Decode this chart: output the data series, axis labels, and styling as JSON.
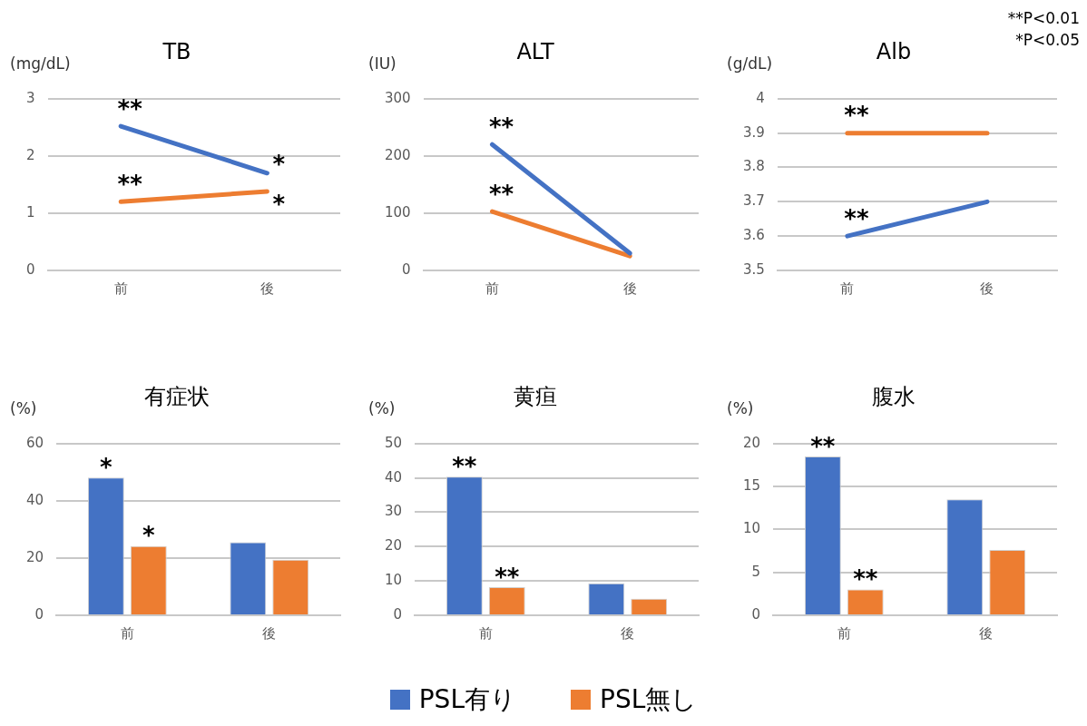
{
  "chart_data": [
    {
      "type": "line",
      "title": "TB",
      "ylabel": "(mg/dL)",
      "categories": [
        "前",
        "後"
      ],
      "ylim": [
        0,
        3
      ],
      "yticks": [
        0,
        1,
        2,
        3
      ],
      "grid": "y",
      "marker": "none",
      "series": [
        {
          "color": "#4472c4",
          "values": [
            2.52,
            1.7
          ]
        },
        {
          "color": "#ed7d31",
          "values": [
            1.2,
            1.38
          ]
        }
      ],
      "annotations": [
        {
          "text": "**",
          "x": "前",
          "y": 2.52
        },
        {
          "text": "*",
          "x": "後",
          "y": 1.7
        },
        {
          "text": "**",
          "x": "前",
          "y": 1.2
        },
        {
          "text": "*",
          "x": "後",
          "y": 1.38
        }
      ]
    },
    {
      "type": "line",
      "title": "ALT",
      "ylabel": "(IU)",
      "categories": [
        "前",
        "後"
      ],
      "ylim": [
        0,
        300
      ],
      "yticks": [
        0,
        100,
        200,
        300
      ],
      "grid": "y",
      "marker": "none",
      "series": [
        {
          "color": "#4472c4",
          "values": [
            220,
            30
          ]
        },
        {
          "color": "#ed7d31",
          "values": [
            103,
            25
          ]
        }
      ],
      "annotations": [
        {
          "text": "**",
          "x": "前",
          "y": 220
        },
        {
          "text": "**",
          "x": "前",
          "y": 103
        }
      ]
    },
    {
      "type": "line",
      "title": "Alb",
      "ylabel": "(g/dL)",
      "categories": [
        "前",
        "後"
      ],
      "ylim": [
        3.5,
        4
      ],
      "yticks": [
        3.5,
        3.6,
        3.7,
        3.8,
        3.9,
        4
      ],
      "grid": "y",
      "marker": "none",
      "series": [
        {
          "color": "#4472c4",
          "values": [
            3.6,
            3.7
          ]
        },
        {
          "color": "#ed7d31",
          "values": [
            3.9,
            3.9
          ]
        }
      ],
      "annotations": [
        {
          "text": "**",
          "x": "前",
          "y": 3.6
        },
        {
          "text": "**",
          "x": "前",
          "y": 3.9
        },
        "**P<0.01",
        "*P<0.05"
      ]
    },
    {
      "type": "bar",
      "title": "有症状",
      "ylabel": "(%)",
      "categories": [
        "前",
        "後"
      ],
      "ylim": [
        0,
        60
      ],
      "yticks": [
        0,
        20,
        40,
        60
      ],
      "grid": "y",
      "series": [
        {
          "color": "#4472c4",
          "values": [
            48.1,
            25.5
          ]
        },
        {
          "color": "#ed7d31",
          "values": [
            24.2,
            19.4
          ]
        }
      ],
      "annotations": [
        {
          "text": "*",
          "x": "前",
          "y": 48.1
        },
        {
          "text": "*",
          "x": "前",
          "y": 24.2
        }
      ]
    },
    {
      "type": "bar",
      "title": "黄疸",
      "ylabel": "(%)",
      "categories": [
        "前",
        "後"
      ],
      "ylim": [
        0,
        50
      ],
      "yticks": [
        0,
        10,
        20,
        30,
        40,
        50
      ],
      "grid": "y",
      "legend": "bottom",
      "series": [
        {
          "name": "PSL有り",
          "color": "#4472c4",
          "values": [
            40.4,
            9.3
          ]
        },
        {
          "name": "PSL無し",
          "color": "#ed7d31",
          "values": [
            8.2,
            4.8
          ]
        }
      ],
      "annotations": [
        {
          "text": "**",
          "x": "前",
          "y": 40.4
        },
        {
          "text": "**",
          "x": "前",
          "y": 8.2
        }
      ]
    },
    {
      "type": "bar",
      "title": "腹水",
      "ylabel": "(%)",
      "categories": [
        "前",
        "後"
      ],
      "ylim": [
        0,
        20
      ],
      "yticks": [
        0,
        5,
        10,
        15,
        20
      ],
      "grid": "y",
      "series": [
        {
          "color": "#4472c4",
          "values": [
            18.5,
            13.5
          ]
        },
        {
          "color": "#ed7d31",
          "values": [
            3.0,
            7.6
          ]
        }
      ],
      "annotations": [
        {
          "text": "**",
          "x": "前",
          "y": 18.5
        },
        {
          "text": "**",
          "x": "前",
          "y": 3.0
        }
      ]
    }
  ]
}
